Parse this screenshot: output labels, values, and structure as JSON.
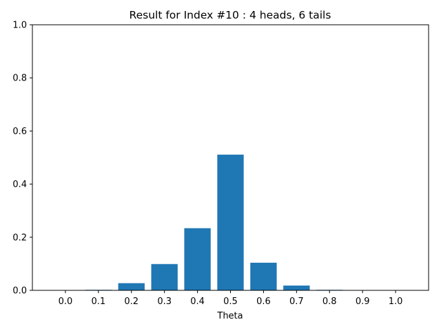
{
  "chart_data": {
    "type": "bar",
    "title": "Result for Index #10 : 4 heads, 6 tails",
    "xlabel": "Theta",
    "ylabel": "",
    "categories": [
      "0.0",
      "0.1",
      "0.2",
      "0.3",
      "0.4",
      "0.5",
      "0.6",
      "0.7",
      "0.8",
      "0.9",
      "1.0"
    ],
    "x": [
      0.0,
      0.1,
      0.2,
      0.3,
      0.4,
      0.5,
      0.6,
      0.7,
      0.8,
      0.9,
      1.0
    ],
    "values": [
      0.0,
      0.002,
      0.027,
      0.099,
      0.234,
      0.511,
      0.104,
      0.018,
      0.002,
      0.0,
      0.0
    ],
    "ylim": [
      0,
      1.0
    ],
    "xlim": [
      -0.1,
      1.1
    ],
    "yticks": [
      0.0,
      0.2,
      0.4,
      0.6,
      0.8,
      1.0
    ],
    "ytick_labels": [
      "0.0",
      "0.2",
      "0.4",
      "0.6",
      "0.8",
      "1.0"
    ],
    "bar_color": "#1f77b4",
    "grid": false,
    "legend": "none"
  }
}
